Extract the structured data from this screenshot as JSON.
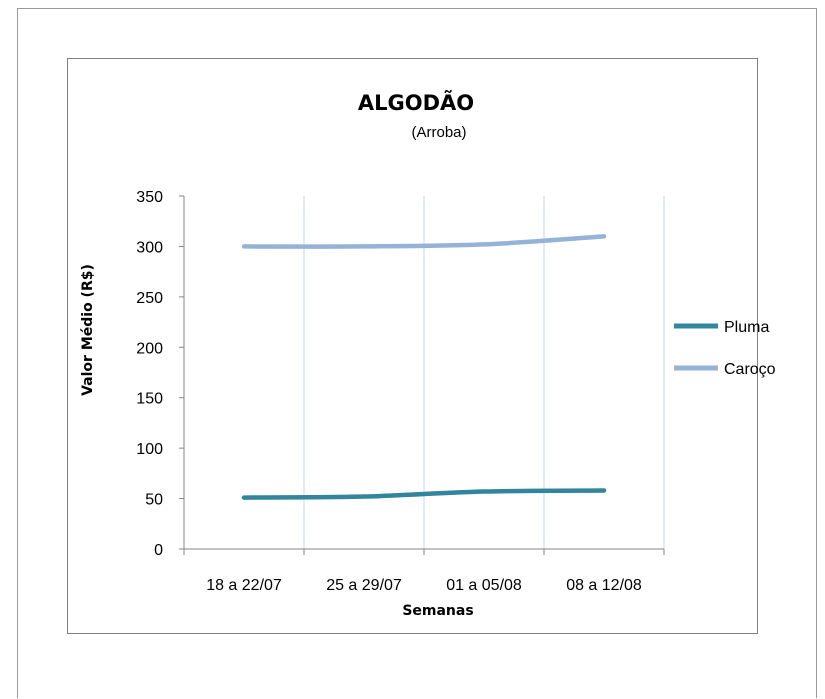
{
  "chart_data": {
    "type": "line",
    "title": "ALGODÃO",
    "subtitle": "(Arroba)",
    "xlabel": "Semanas",
    "ylabel": "Valor Médio (R$)",
    "categories": [
      "18 a 22/07",
      "25 a 29/07",
      "01 a 05/08",
      "08 a 12/08"
    ],
    "ylim": [
      0,
      350
    ],
    "yticks": [
      0,
      50,
      100,
      150,
      200,
      250,
      300,
      350
    ],
    "grid": "vertical",
    "legend": "right",
    "series": [
      {
        "name": "Pluma",
        "values": [
          51,
          52,
          57,
          58
        ],
        "color": "#31859c"
      },
      {
        "name": "Caroço",
        "values": [
          300,
          300,
          302,
          310
        ],
        "color": "#95b3d7"
      }
    ]
  }
}
